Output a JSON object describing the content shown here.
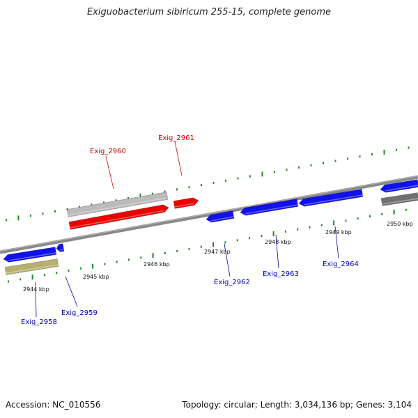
{
  "title": "Exiguobacterium sibiricum 255-15, complete genome",
  "footer": {
    "accession": "Accession: NC_010556",
    "summary": "Topology: circular; Length: 3,034,136 bp; Genes: 3,104"
  },
  "colors": {
    "forward_gene": "#ee0000",
    "reverse_gene": "#1111ee",
    "other_gene": "#bbbbbb",
    "rna_gene": "#b8b070",
    "pseudo_gene": "#707070",
    "backbone": "#888888",
    "ticks": "#228822",
    "forward_label": "#cc0000",
    "reverse_label": "#0000bb"
  },
  "ticks": [
    {
      "label": "2944 kbp"
    },
    {
      "label": "2945 kbp"
    },
    {
      "label": "2946 kbp"
    },
    {
      "label": "2947 kbp"
    },
    {
      "label": "2948 kbp"
    },
    {
      "label": "2949 kbp"
    },
    {
      "label": "2950 kbp"
    }
  ],
  "genes": [
    {
      "label": "Exig_2958",
      "strand": "reverse"
    },
    {
      "label": "Exig_2959",
      "strand": "reverse"
    },
    {
      "label": "Exig_2960",
      "strand": "forward"
    },
    {
      "label": "Exig_2961",
      "strand": "forward"
    },
    {
      "label": "Exig_2962",
      "strand": "reverse"
    },
    {
      "label": "Exig_2963",
      "strand": "reverse"
    },
    {
      "label": "Exig_2964",
      "strand": "reverse"
    }
  ]
}
